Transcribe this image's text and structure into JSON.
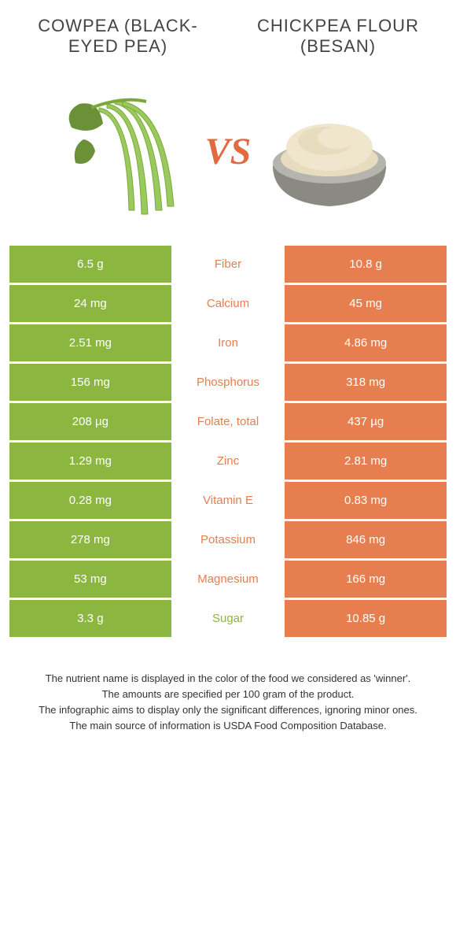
{
  "colors": {
    "left_bg": "#8bb63f",
    "right_bg": "#e67e4f",
    "mid_left_text": "#8bb63f",
    "mid_right_text": "#e67e4f",
    "vs_color": "#e16b3f"
  },
  "left_title": "COWPEA (BLACK-EYED PEA)",
  "right_title": "CHICKPEA FLOUR (BESAN)",
  "vs": "VS",
  "rows": [
    {
      "left": "6.5 g",
      "label": "Fiber",
      "right": "10.8 g",
      "winner": "right"
    },
    {
      "left": "24 mg",
      "label": "Calcium",
      "right": "45 mg",
      "winner": "right"
    },
    {
      "left": "2.51 mg",
      "label": "Iron",
      "right": "4.86 mg",
      "winner": "right"
    },
    {
      "left": "156 mg",
      "label": "Phosphorus",
      "right": "318 mg",
      "winner": "right"
    },
    {
      "left": "208 µg",
      "label": "Folate, total",
      "right": "437 µg",
      "winner": "right"
    },
    {
      "left": "1.29 mg",
      "label": "Zinc",
      "right": "2.81 mg",
      "winner": "right"
    },
    {
      "left": "0.28 mg",
      "label": "Vitamin E",
      "right": "0.83 mg",
      "winner": "right"
    },
    {
      "left": "278 mg",
      "label": "Potassium",
      "right": "846 mg",
      "winner": "right"
    },
    {
      "left": "53 mg",
      "label": "Magnesium",
      "right": "166 mg",
      "winner": "right"
    },
    {
      "left": "3.3 g",
      "label": "Sugar",
      "right": "10.85 g",
      "winner": "left"
    }
  ],
  "footer_lines": [
    "The nutrient name is displayed in the color of the food we considered as 'winner'.",
    "The amounts are specified per 100 gram of the product.",
    "The infographic aims to display only the significant differences, ignoring minor ones.",
    "The main source of information is USDA Food Composition Database."
  ]
}
